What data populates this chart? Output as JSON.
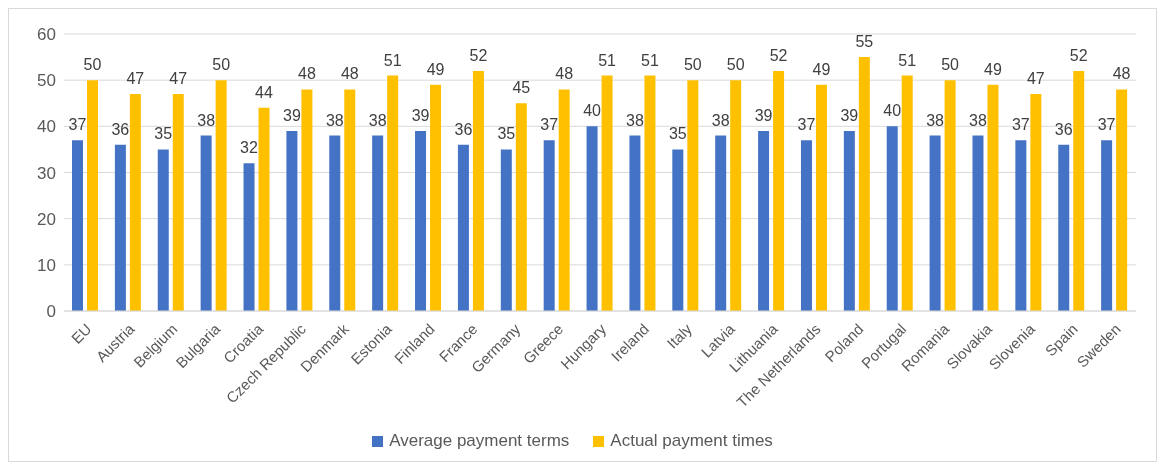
{
  "chart_data": {
    "type": "bar",
    "categories": [
      "EU",
      "Austria",
      "Belgium",
      "Bulgaria",
      "Croatia",
      "Czech Republic",
      "Denmark",
      "Estonia",
      "Finland",
      "France",
      "Germany",
      "Greece",
      "Hungary",
      "Ireland",
      "Italy",
      "Latvia",
      "Lithuania",
      "The Netherlands",
      "Poland",
      "Portugal",
      "Romania",
      "Slovakia",
      "Slovenia",
      "Spain",
      "Sweden"
    ],
    "series": [
      {
        "name": "Average payment terms",
        "color": "#4472c4",
        "values": [
          37,
          36,
          35,
          38,
          32,
          39,
          38,
          38,
          39,
          36,
          35,
          37,
          40,
          38,
          35,
          38,
          39,
          37,
          39,
          40,
          38,
          38,
          37,
          36,
          37
        ]
      },
      {
        "name": "Actual payment times",
        "color": "#ffc000",
        "values": [
          50,
          47,
          47,
          50,
          44,
          48,
          48,
          51,
          49,
          52,
          45,
          48,
          51,
          51,
          50,
          50,
          52,
          49,
          55,
          51,
          50,
          49,
          47,
          52,
          48
        ]
      }
    ],
    "ylim": [
      0,
      60
    ],
    "yticks": [
      0,
      10,
      20,
      30,
      40,
      50,
      60
    ],
    "grid": "y",
    "legend": "bottom",
    "data_labels": true
  }
}
